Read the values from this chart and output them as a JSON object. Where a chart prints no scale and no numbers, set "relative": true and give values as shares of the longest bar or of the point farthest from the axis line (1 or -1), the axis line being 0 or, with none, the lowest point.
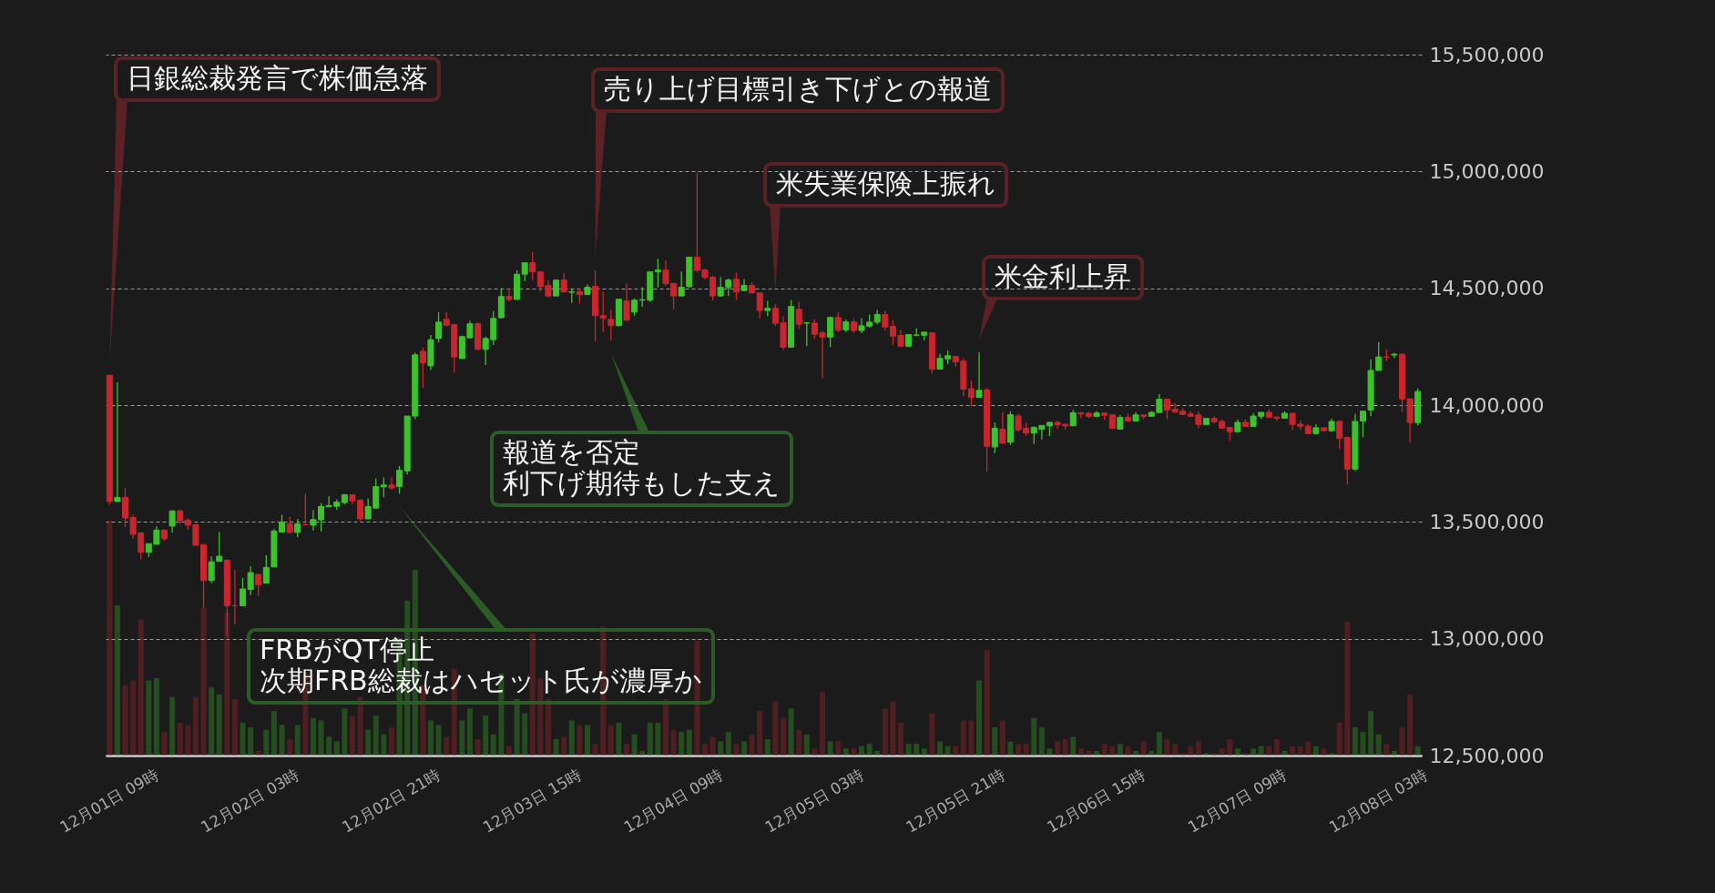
{
  "chart_data": [
    {
      "type": "candlestick",
      "categories": [
        "12月01日 09時",
        null,
        null,
        null,
        null,
        null,
        null,
        null,
        null,
        null,
        null,
        null,
        null,
        null,
        null,
        null,
        null,
        null,
        "12月02日 03時",
        null,
        null,
        null,
        null,
        null,
        null,
        null,
        null,
        null,
        null,
        null,
        null,
        null,
        null,
        null,
        null,
        null,
        "12月02日 21時",
        null,
        null,
        null,
        null,
        null,
        null,
        null,
        null,
        null,
        null,
        null,
        null,
        null,
        null,
        null,
        null,
        null,
        "12月03日 15時",
        null,
        null,
        null,
        null,
        null,
        null,
        null,
        null,
        null,
        null,
        null,
        null,
        null,
        null,
        null,
        null,
        null,
        "12月04日 09時",
        null,
        null,
        null,
        null,
        null,
        null,
        null,
        null,
        null,
        null,
        null,
        null,
        null,
        null,
        null,
        null,
        null,
        "12月05日 03時",
        null,
        null,
        null,
        null,
        null,
        null,
        null,
        null,
        null,
        null,
        null,
        null,
        null,
        null,
        null,
        null,
        null,
        "12月05日 21時",
        null,
        null,
        null,
        null,
        null,
        null,
        null,
        null,
        null,
        null,
        null,
        null,
        null,
        null,
        null,
        null,
        null,
        "12月06日 15時",
        null,
        null,
        null,
        null,
        null,
        null,
        null,
        null,
        null,
        null,
        null,
        null,
        null,
        null,
        null,
        null,
        null,
        "12月07日 09時",
        null,
        null,
        null,
        null,
        null,
        null,
        null,
        null,
        null,
        null,
        null,
        null,
        null,
        null,
        null,
        null,
        null,
        "12月08日 03時",
        null,
        null,
        null,
        null,
        null
      ],
      "ohlc": [
        [
          14128000,
          14128000,
          13574000,
          13587000
        ],
        [
          13587000,
          14097000,
          13587000,
          13605000
        ],
        [
          13605000,
          13647000,
          13477000,
          13517000
        ],
        [
          13519000,
          13531000,
          13428000,
          13447000
        ],
        [
          13453000,
          13453000,
          13341000,
          13370000
        ],
        [
          13370000,
          13407000,
          13350000,
          13407000
        ],
        [
          13404000,
          13481000,
          13404000,
          13465000
        ],
        [
          13465000,
          13465000,
          13419000,
          13428000
        ],
        [
          13482000,
          13550000,
          13455000,
          13547000
        ],
        [
          13547000,
          13554000,
          13490000,
          13505000
        ],
        [
          13508000,
          13516000,
          13466000,
          13486000
        ],
        [
          13488000,
          13492000,
          13400000,
          13400000
        ],
        [
          13403000,
          13403000,
          13133000,
          13249000
        ],
        [
          13249000,
          13353000,
          13238000,
          13329000
        ],
        [
          13332000,
          13457000,
          13332000,
          13353000
        ],
        [
          13336000,
          13340000,
          13010000,
          13141000
        ],
        [
          13141000,
          13295000,
          13061000,
          13141000
        ],
        [
          13141000,
          13260000,
          13141000,
          13213000
        ],
        [
          13211000,
          13310000,
          13187000,
          13283000
        ],
        [
          13275000,
          13278000,
          13183000,
          13230000
        ],
        [
          13238000,
          13357000,
          13238000,
          13305000
        ],
        [
          13307000,
          13469000,
          13307000,
          13461000
        ],
        [
          13457000,
          13531000,
          13455000,
          13500000
        ],
        [
          13492000,
          13523000,
          13450000,
          13455000
        ],
        [
          13455000,
          13512000,
          13435000,
          13492000
        ],
        [
          13488000,
          13620000,
          13487000,
          13487000
        ],
        [
          13486000,
          13550000,
          13463000,
          13510000
        ],
        [
          13509000,
          13581000,
          13459000,
          13566000
        ],
        [
          13565000,
          13609000,
          13565000,
          13570000
        ],
        [
          13567000,
          13597000,
          13552000,
          13585000
        ],
        [
          13583000,
          13620000,
          13575000,
          13616000
        ],
        [
          13616000,
          13616000,
          13575000,
          13590000
        ],
        [
          13593000,
          13597000,
          13503000,
          13513000
        ],
        [
          13513000,
          13601000,
          13513000,
          13566000
        ],
        [
          13559000,
          13686000,
          13559000,
          13651000
        ],
        [
          13650000,
          13690000,
          13606000,
          13658000
        ],
        [
          13658000,
          13690000,
          13637000,
          13645000
        ],
        [
          13652000,
          13740000,
          13621000,
          13721000
        ],
        [
          13718000,
          13953000,
          13703000,
          13953000
        ],
        [
          13953000,
          14225000,
          13940000,
          14215000
        ],
        [
          14230000,
          14245000,
          14074000,
          14180000
        ],
        [
          14168000,
          14300000,
          14150000,
          14280000
        ],
        [
          14285000,
          14398000,
          14268000,
          14355000
        ],
        [
          14367000,
          14398000,
          14337000,
          14342000
        ],
        [
          14344000,
          14344000,
          14139000,
          14206000
        ],
        [
          14199000,
          14297000,
          14199000,
          14293000
        ],
        [
          14288000,
          14361000,
          14285000,
          14348000
        ],
        [
          14349000,
          14353000,
          14238000,
          14238000
        ],
        [
          14238000,
          14293000,
          14171000,
          14285000
        ],
        [
          14280000,
          14402000,
          14257000,
          14371000
        ],
        [
          14374000,
          14500000,
          14371000,
          14465000
        ],
        [
          14465000,
          14500000,
          14444000,
          14452000
        ],
        [
          14452000,
          14577000,
          14452000,
          14560000
        ],
        [
          14560000,
          14609000,
          14531000,
          14609000
        ],
        [
          14609000,
          14656000,
          14535000,
          14570000
        ],
        [
          14570000,
          14570000,
          14487000,
          14507000
        ],
        [
          14512000,
          14535000,
          14461000,
          14467000
        ],
        [
          14467000,
          14538000,
          14467000,
          14535000
        ],
        [
          14535000,
          14566000,
          14484000,
          14484000
        ],
        [
          14483000,
          14500000,
          14437000,
          14484000
        ],
        [
          14486000,
          14500000,
          14434000,
          14473000
        ],
        [
          14473000,
          14516000,
          14473000,
          14504000
        ],
        [
          14508000,
          14576000,
          14273000,
          14383000
        ],
        [
          14383000,
          14486000,
          14313000,
          14371000
        ],
        [
          14367000,
          14408000,
          14277000,
          14340000
        ],
        [
          14340000,
          14453000,
          14336000,
          14453000
        ],
        [
          14445000,
          14520000,
          14363000,
          14363000
        ],
        [
          14398000,
          14457000,
          14382000,
          14449000
        ],
        [
          14449000,
          14505000,
          14421000,
          14451000
        ],
        [
          14449000,
          14573000,
          14441000,
          14570000
        ],
        [
          14570000,
          14626000,
          14503000,
          14578000
        ],
        [
          14578000,
          14618000,
          14510000,
          14520000
        ],
        [
          14520000,
          14520000,
          14409000,
          14467000
        ],
        [
          14467000,
          14572000,
          14467000,
          14504000
        ],
        [
          14507000,
          14633000,
          14503000,
          14633000
        ],
        [
          14633000,
          14995000,
          14569000,
          14577000
        ],
        [
          14578000,
          14583000,
          14539000,
          14547000
        ],
        [
          14547000,
          14553000,
          14448000,
          14467000
        ],
        [
          14467000,
          14548000,
          14464000,
          14504000
        ],
        [
          14503000,
          14542000,
          14467000,
          14535000
        ],
        [
          14539000,
          14568000,
          14451000,
          14484000
        ],
        [
          14490000,
          14539000,
          14487000,
          14512000
        ],
        [
          14512000,
          14525000,
          14480000,
          14480000
        ],
        [
          14480000,
          14480000,
          14371000,
          14405000
        ],
        [
          14405000,
          14446000,
          14381000,
          14414000
        ],
        [
          14414000,
          14431000,
          14338000,
          14350000
        ],
        [
          14352000,
          14380000,
          14236000,
          14248000
        ],
        [
          14248000,
          14450000,
          14248000,
          14422000
        ],
        [
          14410000,
          14443000,
          14326000,
          14346000
        ],
        [
          14351000,
          14356000,
          14252000,
          14352000
        ],
        [
          14351000,
          14368000,
          14283000,
          14303000
        ],
        [
          14309000,
          14317000,
          14115000,
          14291000
        ],
        [
          14291000,
          14379000,
          14248000,
          14375000
        ],
        [
          14375000,
          14398000,
          14313000,
          14320000
        ],
        [
          14322000,
          14366000,
          14313000,
          14356000
        ],
        [
          14356000,
          14368000,
          14309000,
          14319000
        ],
        [
          14319000,
          14372000,
          14309000,
          14339000
        ],
        [
          14338000,
          14388000,
          14333000,
          14355000
        ],
        [
          14355000,
          14407000,
          14346000,
          14388000
        ],
        [
          14388000,
          14403000,
          14319000,
          14334000
        ],
        [
          14337000,
          14364000,
          14258000,
          14295000
        ],
        [
          14298000,
          14321000,
          14252000,
          14252000
        ],
        [
          14252000,
          14302000,
          14252000,
          14302000
        ],
        [
          14299000,
          14329000,
          14299000,
          14300000
        ],
        [
          14299000,
          14312000,
          14277000,
          14312000
        ],
        [
          14309000,
          14309000,
          14134000,
          14153000
        ],
        [
          14154000,
          14219000,
          14154000,
          14200000
        ],
        [
          14198000,
          14234000,
          14174000,
          14211000
        ],
        [
          14208000,
          14210000,
          14166000,
          14185000
        ],
        [
          14188000,
          14201000,
          14037000,
          14068000
        ],
        [
          14070000,
          14106000,
          13995000,
          14033000
        ],
        [
          14033000,
          14226000,
          14033000,
          14063000
        ],
        [
          14065000,
          14074000,
          13715000,
          13824000
        ],
        [
          13821000,
          13926000,
          13794000,
          13901000
        ],
        [
          13897000,
          13969000,
          13834000,
          13837000
        ],
        [
          13841000,
          13974000,
          13829000,
          13959000
        ],
        [
          13953000,
          13963000,
          13886000,
          13894000
        ],
        [
          13901000,
          13924000,
          13868000,
          13880000
        ],
        [
          13880000,
          13909000,
          13833000,
          13905000
        ],
        [
          13896000,
          13913000,
          13852000,
          13913000
        ],
        [
          13911000,
          13928000,
          13868000,
          13926000
        ],
        [
          13926000,
          13933000,
          13899000,
          13915000
        ],
        [
          13918000,
          13918000,
          13896000,
          13911000
        ],
        [
          13911000,
          13980000,
          13911000,
          13967000
        ],
        [
          13967000,
          13970000,
          13944000,
          13962000
        ],
        [
          13965000,
          13971000,
          13945000,
          13952000
        ],
        [
          13952000,
          13974000,
          13947000,
          13966000
        ],
        [
          13966000,
          13969000,
          13936000,
          13956000
        ],
        [
          13958000,
          13958000,
          13901000,
          13901000
        ],
        [
          13897000,
          13958000,
          13897000,
          13947000
        ],
        [
          13947000,
          13962000,
          13932000,
          13932000
        ],
        [
          13932000,
          13970000,
          13932000,
          13958000
        ],
        [
          13958000,
          13958000,
          13940000,
          13951000
        ],
        [
          13952000,
          13974000,
          13952000,
          13969000
        ],
        [
          13968000,
          14048000,
          13968000,
          14025000
        ],
        [
          14025000,
          14025000,
          13940000,
          13979000
        ],
        [
          13982000,
          14009000,
          13971000,
          13971000
        ],
        [
          13974000,
          13987000,
          13960000,
          13960000
        ],
        [
          13962000,
          13974000,
          13948000,
          13952000
        ],
        [
          13958000,
          13974000,
          13901000,
          13917000
        ],
        [
          13917000,
          13943000,
          13913000,
          13943000
        ],
        [
          13943000,
          13953000,
          13922000,
          13929000
        ],
        [
          13930000,
          13939000,
          13901000,
          13901000
        ],
        [
          13904000,
          13904000,
          13847000,
          13886000
        ],
        [
          13886000,
          13939000,
          13886000,
          13926000
        ],
        [
          13926000,
          13939000,
          13909000,
          13909000
        ],
        [
          13909000,
          13966000,
          13909000,
          13953000
        ],
        [
          13952000,
          13969000,
          13940000,
          13969000
        ],
        [
          13969000,
          13982000,
          13944000,
          13948000
        ],
        [
          13949000,
          13949000,
          13932000,
          13944000
        ],
        [
          13944000,
          13974000,
          13944000,
          13965000
        ],
        [
          13965000,
          13965000,
          13894000,
          13917000
        ],
        [
          13918000,
          13935000,
          13894000,
          13909000
        ],
        [
          13910000,
          13919000,
          13878000,
          13878000
        ],
        [
          13878000,
          13919000,
          13878000,
          13903000
        ],
        [
          13903000,
          13903000,
          13890000,
          13890000
        ],
        [
          13890000,
          13943000,
          13886000,
          13930000
        ],
        [
          13930000,
          13935000,
          13812000,
          13858000
        ],
        [
          13861000,
          13865000,
          13660000,
          13726000
        ],
        [
          13726000,
          13962000,
          13718000,
          13930000
        ],
        [
          13932000,
          13974000,
          13862000,
          13974000
        ],
        [
          13979000,
          14196000,
          13952000,
          14148000
        ],
        [
          14148000,
          14270000,
          14148000,
          14206000
        ],
        [
          14206000,
          14239000,
          14190000,
          14205000
        ],
        [
          14214000,
          14223000,
          14201000,
          14218000
        ],
        [
          14218000,
          14218000,
          13971000,
          14026000
        ],
        [
          14027000,
          14027000,
          13839000,
          13925000
        ],
        [
          13925000,
          14071000,
          13913000,
          14058000
        ]
      ],
      "colors": [
        "#c8262f",
        "#3cc22a",
        "#c8262f",
        "#c8262f",
        "#c8262f",
        "#3cc22a",
        "#3cc22a",
        "#c8262f",
        "#3cc22a",
        "#c8262f",
        "#c8262f",
        "#c8262f",
        "#c8262f",
        "#3cc22a",
        "#3cc22a",
        "#c8262f",
        "#c8262f",
        "#3cc22a",
        "#3cc22a",
        "#c8262f",
        "#3cc22a",
        "#3cc22a",
        "#3cc22a",
        "#c8262f",
        "#3cc22a",
        "#c8262f",
        "#3cc22a",
        "#3cc22a",
        "#3cc22a",
        "#3cc22a",
        "#3cc22a",
        "#c8262f",
        "#c8262f",
        "#3cc22a",
        "#3cc22a",
        "#3cc22a",
        "#c8262f",
        "#3cc22a",
        "#3cc22a",
        "#3cc22a",
        "#c8262f",
        "#3cc22a",
        "#3cc22a",
        "#c8262f",
        "#c8262f",
        "#3cc22a",
        "#3cc22a",
        "#c8262f",
        "#3cc22a",
        "#3cc22a",
        "#3cc22a",
        "#c8262f",
        "#3cc22a",
        "#3cc22a",
        "#c8262f",
        "#c8262f",
        "#c8262f",
        "#3cc22a",
        "#c8262f",
        "#3cc22a",
        "#c8262f",
        "#3cc22a",
        "#c8262f",
        "#c8262f",
        "#c8262f",
        "#3cc22a",
        "#c8262f",
        "#3cc22a",
        "#3cc22a",
        "#3cc22a",
        "#3cc22a",
        "#c8262f",
        "#c8262f",
        "#3cc22a",
        "#3cc22a",
        "#c8262f",
        "#c8262f",
        "#c8262f",
        "#3cc22a",
        "#3cc22a",
        "#c8262f",
        "#3cc22a",
        "#c8262f",
        "#c8262f",
        "#3cc22a",
        "#c8262f",
        "#c8262f",
        "#3cc22a",
        "#c8262f",
        "#3cc22a",
        "#c8262f",
        "#c8262f",
        "#3cc22a",
        "#c8262f",
        "#3cc22a",
        "#c8262f",
        "#3cc22a",
        "#3cc22a",
        "#3cc22a",
        "#c8262f",
        "#c8262f",
        "#c8262f",
        "#3cc22a",
        "#3cc22a",
        "#3cc22a",
        "#c8262f",
        "#3cc22a",
        "#3cc22a",
        "#c8262f",
        "#c8262f",
        "#c8262f",
        "#3cc22a",
        "#c8262f",
        "#3cc22a",
        "#c8262f",
        "#3cc22a",
        "#c8262f",
        "#c8262f",
        "#3cc22a",
        "#3cc22a",
        "#3cc22a",
        "#c8262f",
        "#c8262f",
        "#3cc22a",
        "#c8262f",
        "#c8262f",
        "#3cc22a",
        "#c8262f",
        "#c8262f",
        "#3cc22a",
        "#c8262f",
        "#3cc22a",
        "#c8262f",
        "#3cc22a",
        "#3cc22a",
        "#c8262f",
        "#c8262f",
        "#c8262f",
        "#c8262f",
        "#c8262f",
        "#3cc22a",
        "#c8262f",
        "#c8262f",
        "#c8262f",
        "#3cc22a",
        "#c8262f",
        "#3cc22a",
        "#3cc22a",
        "#c8262f",
        "#c8262f",
        "#3cc22a",
        "#c8262f",
        "#c8262f",
        "#c8262f",
        "#3cc22a",
        "#c8262f",
        "#3cc22a",
        "#c8262f",
        "#c8262f",
        "#3cc22a",
        "#3cc22a",
        "#3cc22a",
        "#3cc22a",
        "#c8262f",
        "#3cc22a",
        "#c8262f",
        "#c8262f",
        "#3cc22a"
      ],
      "ylim": [
        12500000,
        15500000
      ],
      "yticks": [
        {
          "value": 12500000,
          "label": "12,500,000"
        },
        {
          "value": 13000000,
          "label": "13,000,000"
        },
        {
          "value": 13500000,
          "label": "13,500,000"
        },
        {
          "value": 14000000,
          "label": "14,000,000"
        },
        {
          "value": 14500000,
          "label": "14,500,000"
        },
        {
          "value": 15000000,
          "label": "15,000,000"
        },
        {
          "value": 15500000,
          "label": "15,500,000"
        }
      ],
      "grid": "y",
      "annotations": [
        "日銀総裁発言で株価急落",
        "売り上げ目標引き下げとの報道",
        "米失業保険上振れ",
        "米金利上昇",
        "報道を否定利下げ期待もした支え",
        "FRBがQT停止次期FRB総裁はハセット氏が濃厚か"
      ]
    },
    {
      "type": "bar",
      "relative": true,
      "categories": [
        null,
        null,
        null,
        null,
        null,
        null,
        null,
        null,
        null,
        null,
        null,
        null,
        null,
        null,
        null,
        null,
        null,
        null,
        null,
        null,
        null,
        null,
        null,
        null,
        null,
        null,
        null,
        null,
        null,
        null,
        null,
        null,
        null,
        null,
        null,
        null,
        null,
        null,
        null,
        null,
        null,
        null,
        null,
        null,
        null,
        null,
        null,
        null,
        null,
        null,
        null,
        null,
        null,
        null,
        null,
        null,
        null,
        null,
        null,
        null,
        null,
        null,
        null,
        null,
        null,
        null,
        null,
        null,
        null,
        null,
        null,
        null,
        null,
        null,
        null,
        null,
        null,
        null,
        null,
        null,
        null,
        null,
        null,
        null,
        null,
        null,
        null,
        null,
        null,
        null,
        null,
        null,
        null,
        null,
        null,
        null,
        null,
        null,
        null,
        null,
        null,
        null,
        null,
        null,
        null,
        null,
        null,
        null,
        null,
        null,
        null,
        null,
        null,
        null,
        null,
        null,
        null,
        null,
        null,
        null,
        null,
        null,
        null,
        null,
        null,
        null,
        null,
        null,
        null,
        null,
        null,
        null,
        null,
        null,
        null,
        null,
        null,
        null,
        null,
        null,
        null,
        null,
        null,
        null,
        null,
        null,
        null,
        null,
        null,
        null,
        null,
        null,
        null,
        null,
        null,
        null,
        null,
        null,
        null,
        null,
        null,
        null,
        null,
        null,
        null,
        null,
        null,
        null
      ],
      "colors": [
        "#4f1e21",
        "#254d1f",
        "#4f1e21",
        "#4f1e21",
        "#4f1e21",
        "#254d1f",
        "#254d1f",
        "#4f1e21",
        "#254d1f",
        "#4f1e21",
        "#4f1e21",
        "#4f1e21",
        "#4f1e21",
        "#254d1f",
        "#254d1f",
        "#4f1e21",
        "#4f1e21",
        "#254d1f",
        "#254d1f",
        "#4f1e21",
        "#254d1f",
        "#254d1f",
        "#254d1f",
        "#4f1e21",
        "#254d1f",
        "#4f1e21",
        "#254d1f",
        "#254d1f",
        "#254d1f",
        "#254d1f",
        "#254d1f",
        "#4f1e21",
        "#4f1e21",
        "#254d1f",
        "#254d1f",
        "#254d1f",
        "#4f1e21",
        "#254d1f",
        "#254d1f",
        "#254d1f",
        "#4f1e21",
        "#254d1f",
        "#254d1f",
        "#4f1e21",
        "#4f1e21",
        "#254d1f",
        "#254d1f",
        "#4f1e21",
        "#254d1f",
        "#254d1f",
        "#254d1f",
        "#4f1e21",
        "#254d1f",
        "#254d1f",
        "#4f1e21",
        "#4f1e21",
        "#4f1e21",
        "#254d1f",
        "#4f1e21",
        "#254d1f",
        "#4f1e21",
        "#254d1f",
        "#4f1e21",
        "#4f1e21",
        "#4f1e21",
        "#254d1f",
        "#4f1e21",
        "#254d1f",
        "#254d1f",
        "#254d1f",
        "#254d1f",
        "#4f1e21",
        "#4f1e21",
        "#254d1f",
        "#254d1f",
        "#4f1e21",
        "#4f1e21",
        "#4f1e21",
        "#254d1f",
        "#254d1f",
        "#4f1e21",
        "#254d1f",
        "#4f1e21",
        "#4f1e21",
        "#254d1f",
        "#4f1e21",
        "#4f1e21",
        "#254d1f",
        "#4f1e21",
        "#254d1f",
        "#4f1e21",
        "#4f1e21",
        "#254d1f",
        "#4f1e21",
        "#254d1f",
        "#4f1e21",
        "#254d1f",
        "#254d1f",
        "#254d1f",
        "#4f1e21",
        "#4f1e21",
        "#4f1e21",
        "#254d1f",
        "#254d1f",
        "#254d1f",
        "#4f1e21",
        "#254d1f",
        "#254d1f",
        "#4f1e21",
        "#4f1e21",
        "#4f1e21",
        "#254d1f",
        "#4f1e21",
        "#254d1f",
        "#4f1e21",
        "#254d1f",
        "#4f1e21",
        "#4f1e21",
        "#254d1f",
        "#254d1f",
        "#254d1f",
        "#4f1e21",
        "#4f1e21",
        "#254d1f",
        "#4f1e21",
        "#4f1e21",
        "#254d1f",
        "#4f1e21",
        "#4f1e21",
        "#254d1f",
        "#4f1e21",
        "#254d1f",
        "#4f1e21",
        "#254d1f",
        "#254d1f",
        "#4f1e21",
        "#4f1e21",
        "#4f1e21",
        "#4f1e21",
        "#4f1e21",
        "#254d1f",
        "#4f1e21",
        "#4f1e21",
        "#4f1e21",
        "#254d1f",
        "#4f1e21",
        "#254d1f",
        "#254d1f",
        "#4f1e21",
        "#4f1e21",
        "#254d1f",
        "#4f1e21",
        "#4f1e21",
        "#4f1e21",
        "#254d1f",
        "#4f1e21",
        "#254d1f",
        "#4f1e21",
        "#4f1e21",
        "#254d1f",
        "#254d1f",
        "#254d1f",
        "#254d1f",
        "#4f1e21",
        "#254d1f",
        "#4f1e21",
        "#4f1e21",
        "#254d1f"
      ],
      "values": [
        1.0,
        0.64,
        0.3,
        0.32,
        0.58,
        0.32,
        0.33,
        0.1,
        0.25,
        0.14,
        0.13,
        0.25,
        0.63,
        0.29,
        0.26,
        0.61,
        0.24,
        0.14,
        0.12,
        0.02,
        0.11,
        0.19,
        0.13,
        0.07,
        0.13,
        0.35,
        0.16,
        0.15,
        0.08,
        0.06,
        0.2,
        0.17,
        0.25,
        0.11,
        0.17,
        0.09,
        0.12,
        0.5,
        0.66,
        0.79,
        0.3,
        0.15,
        0.13,
        0.08,
        0.37,
        0.15,
        0.2,
        0.07,
        0.17,
        0.09,
        0.35,
        0.04,
        0.24,
        0.18,
        0.52,
        0.33,
        0.24,
        0.07,
        0.08,
        0.15,
        0.13,
        0.13,
        0.05,
        0.55,
        0.13,
        0.14,
        0.05,
        0.09,
        0.02,
        0.14,
        0.14,
        0.24,
        0.11,
        0.1,
        0.11,
        0.49,
        0.05,
        0.08,
        0.06,
        0.1,
        0.05,
        0.06,
        0.09,
        0.19,
        0.07,
        0.23,
        0.16,
        0.2,
        0.11,
        0.09,
        0.03,
        0.27,
        0.06,
        0.06,
        0.03,
        0.03,
        0.04,
        0.05,
        0.02,
        0.2,
        0.23,
        0.14,
        0.05,
        0.05,
        0.03,
        0.18,
        0.06,
        0.04,
        0.04,
        0.15,
        0.15,
        0.32,
        0.45,
        0.12,
        0.15,
        0.06,
        0.05,
        0.05,
        0.16,
        0.12,
        0.03,
        0.06,
        0.07,
        0.08,
        0.03,
        0.02,
        0.02,
        0.05,
        0.04,
        0.05,
        0.04,
        0.02,
        0.06,
        0.02,
        0.1,
        0.07,
        0.05,
        0.01,
        0.04,
        0.06,
        0.01,
        0.01,
        0.03,
        0.07,
        0.03,
        0.01,
        0.03,
        0.04,
        0.04,
        0.07,
        0.02,
        0.04,
        0.04,
        0.06,
        0.04,
        0.03,
        0.01,
        0.14,
        0.57,
        0.12,
        0.1,
        0.19,
        0.09,
        0.05,
        0.02,
        0.12,
        0.26,
        0.04
      ]
    }
  ]
}
